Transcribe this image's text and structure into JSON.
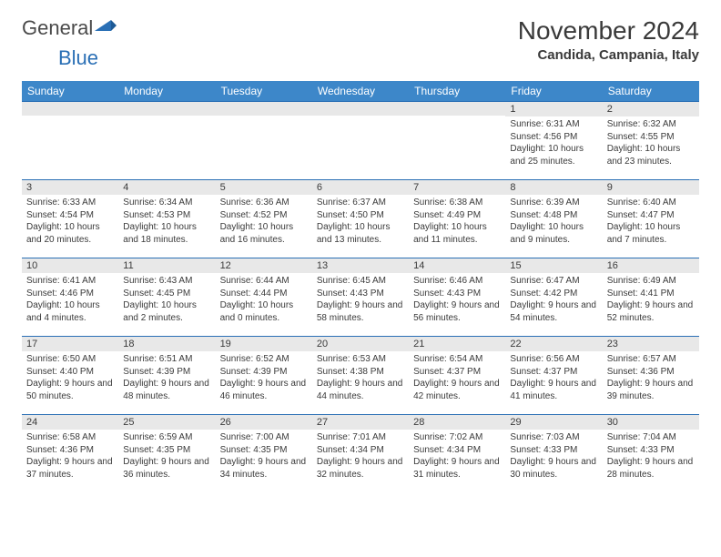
{
  "logo": {
    "text1": "General",
    "text2": "Blue"
  },
  "title": "November 2024",
  "location": "Candida, Campania, Italy",
  "colors": {
    "header_bg": "#3d87c9",
    "header_text": "#ffffff",
    "day_strip_bg": "#e8e8e8",
    "day_strip_border": "#2a6fb5",
    "body_text": "#3a3a3a",
    "page_bg": "#ffffff"
  },
  "daynames": [
    "Sunday",
    "Monday",
    "Tuesday",
    "Wednesday",
    "Thursday",
    "Friday",
    "Saturday"
  ],
  "weeks": [
    [
      {
        "num": "",
        "lines": []
      },
      {
        "num": "",
        "lines": []
      },
      {
        "num": "",
        "lines": []
      },
      {
        "num": "",
        "lines": []
      },
      {
        "num": "",
        "lines": []
      },
      {
        "num": "1",
        "lines": [
          "Sunrise: 6:31 AM",
          "Sunset: 4:56 PM",
          "Daylight: 10 hours and 25 minutes."
        ]
      },
      {
        "num": "2",
        "lines": [
          "Sunrise: 6:32 AM",
          "Sunset: 4:55 PM",
          "Daylight: 10 hours and 23 minutes."
        ]
      }
    ],
    [
      {
        "num": "3",
        "lines": [
          "Sunrise: 6:33 AM",
          "Sunset: 4:54 PM",
          "Daylight: 10 hours and 20 minutes."
        ]
      },
      {
        "num": "4",
        "lines": [
          "Sunrise: 6:34 AM",
          "Sunset: 4:53 PM",
          "Daylight: 10 hours and 18 minutes."
        ]
      },
      {
        "num": "5",
        "lines": [
          "Sunrise: 6:36 AM",
          "Sunset: 4:52 PM",
          "Daylight: 10 hours and 16 minutes."
        ]
      },
      {
        "num": "6",
        "lines": [
          "Sunrise: 6:37 AM",
          "Sunset: 4:50 PM",
          "Daylight: 10 hours and 13 minutes."
        ]
      },
      {
        "num": "7",
        "lines": [
          "Sunrise: 6:38 AM",
          "Sunset: 4:49 PM",
          "Daylight: 10 hours and 11 minutes."
        ]
      },
      {
        "num": "8",
        "lines": [
          "Sunrise: 6:39 AM",
          "Sunset: 4:48 PM",
          "Daylight: 10 hours and 9 minutes."
        ]
      },
      {
        "num": "9",
        "lines": [
          "Sunrise: 6:40 AM",
          "Sunset: 4:47 PM",
          "Daylight: 10 hours and 7 minutes."
        ]
      }
    ],
    [
      {
        "num": "10",
        "lines": [
          "Sunrise: 6:41 AM",
          "Sunset: 4:46 PM",
          "Daylight: 10 hours and 4 minutes."
        ]
      },
      {
        "num": "11",
        "lines": [
          "Sunrise: 6:43 AM",
          "Sunset: 4:45 PM",
          "Daylight: 10 hours and 2 minutes."
        ]
      },
      {
        "num": "12",
        "lines": [
          "Sunrise: 6:44 AM",
          "Sunset: 4:44 PM",
          "Daylight: 10 hours and 0 minutes."
        ]
      },
      {
        "num": "13",
        "lines": [
          "Sunrise: 6:45 AM",
          "Sunset: 4:43 PM",
          "Daylight: 9 hours and 58 minutes."
        ]
      },
      {
        "num": "14",
        "lines": [
          "Sunrise: 6:46 AM",
          "Sunset: 4:43 PM",
          "Daylight: 9 hours and 56 minutes."
        ]
      },
      {
        "num": "15",
        "lines": [
          "Sunrise: 6:47 AM",
          "Sunset: 4:42 PM",
          "Daylight: 9 hours and 54 minutes."
        ]
      },
      {
        "num": "16",
        "lines": [
          "Sunrise: 6:49 AM",
          "Sunset: 4:41 PM",
          "Daylight: 9 hours and 52 minutes."
        ]
      }
    ],
    [
      {
        "num": "17",
        "lines": [
          "Sunrise: 6:50 AM",
          "Sunset: 4:40 PM",
          "Daylight: 9 hours and 50 minutes."
        ]
      },
      {
        "num": "18",
        "lines": [
          "Sunrise: 6:51 AM",
          "Sunset: 4:39 PM",
          "Daylight: 9 hours and 48 minutes."
        ]
      },
      {
        "num": "19",
        "lines": [
          "Sunrise: 6:52 AM",
          "Sunset: 4:39 PM",
          "Daylight: 9 hours and 46 minutes."
        ]
      },
      {
        "num": "20",
        "lines": [
          "Sunrise: 6:53 AM",
          "Sunset: 4:38 PM",
          "Daylight: 9 hours and 44 minutes."
        ]
      },
      {
        "num": "21",
        "lines": [
          "Sunrise: 6:54 AM",
          "Sunset: 4:37 PM",
          "Daylight: 9 hours and 42 minutes."
        ]
      },
      {
        "num": "22",
        "lines": [
          "Sunrise: 6:56 AM",
          "Sunset: 4:37 PM",
          "Daylight: 9 hours and 41 minutes."
        ]
      },
      {
        "num": "23",
        "lines": [
          "Sunrise: 6:57 AM",
          "Sunset: 4:36 PM",
          "Daylight: 9 hours and 39 minutes."
        ]
      }
    ],
    [
      {
        "num": "24",
        "lines": [
          "Sunrise: 6:58 AM",
          "Sunset: 4:36 PM",
          "Daylight: 9 hours and 37 minutes."
        ]
      },
      {
        "num": "25",
        "lines": [
          "Sunrise: 6:59 AM",
          "Sunset: 4:35 PM",
          "Daylight: 9 hours and 36 minutes."
        ]
      },
      {
        "num": "26",
        "lines": [
          "Sunrise: 7:00 AM",
          "Sunset: 4:35 PM",
          "Daylight: 9 hours and 34 minutes."
        ]
      },
      {
        "num": "27",
        "lines": [
          "Sunrise: 7:01 AM",
          "Sunset: 4:34 PM",
          "Daylight: 9 hours and 32 minutes."
        ]
      },
      {
        "num": "28",
        "lines": [
          "Sunrise: 7:02 AM",
          "Sunset: 4:34 PM",
          "Daylight: 9 hours and 31 minutes."
        ]
      },
      {
        "num": "29",
        "lines": [
          "Sunrise: 7:03 AM",
          "Sunset: 4:33 PM",
          "Daylight: 9 hours and 30 minutes."
        ]
      },
      {
        "num": "30",
        "lines": [
          "Sunrise: 7:04 AM",
          "Sunset: 4:33 PM",
          "Daylight: 9 hours and 28 minutes."
        ]
      }
    ]
  ]
}
